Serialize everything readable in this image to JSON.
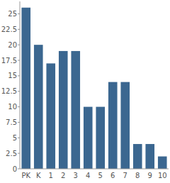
{
  "chart_data": {
    "type": "bar",
    "categories": [
      "PK",
      "K",
      "1",
      "2",
      "3",
      "4",
      "5",
      "6",
      "7",
      "8",
      "9",
      "10"
    ],
    "values": [
      26,
      20,
      17,
      19,
      19,
      10,
      10,
      14,
      14,
      4,
      4,
      2
    ],
    "color": "#3b6790",
    "ylim": [
      0,
      27
    ],
    "yticks": [
      0,
      2.5,
      5,
      7.5,
      10,
      12.5,
      15,
      17.5,
      20,
      22.5,
      25
    ],
    "grid": false
  }
}
